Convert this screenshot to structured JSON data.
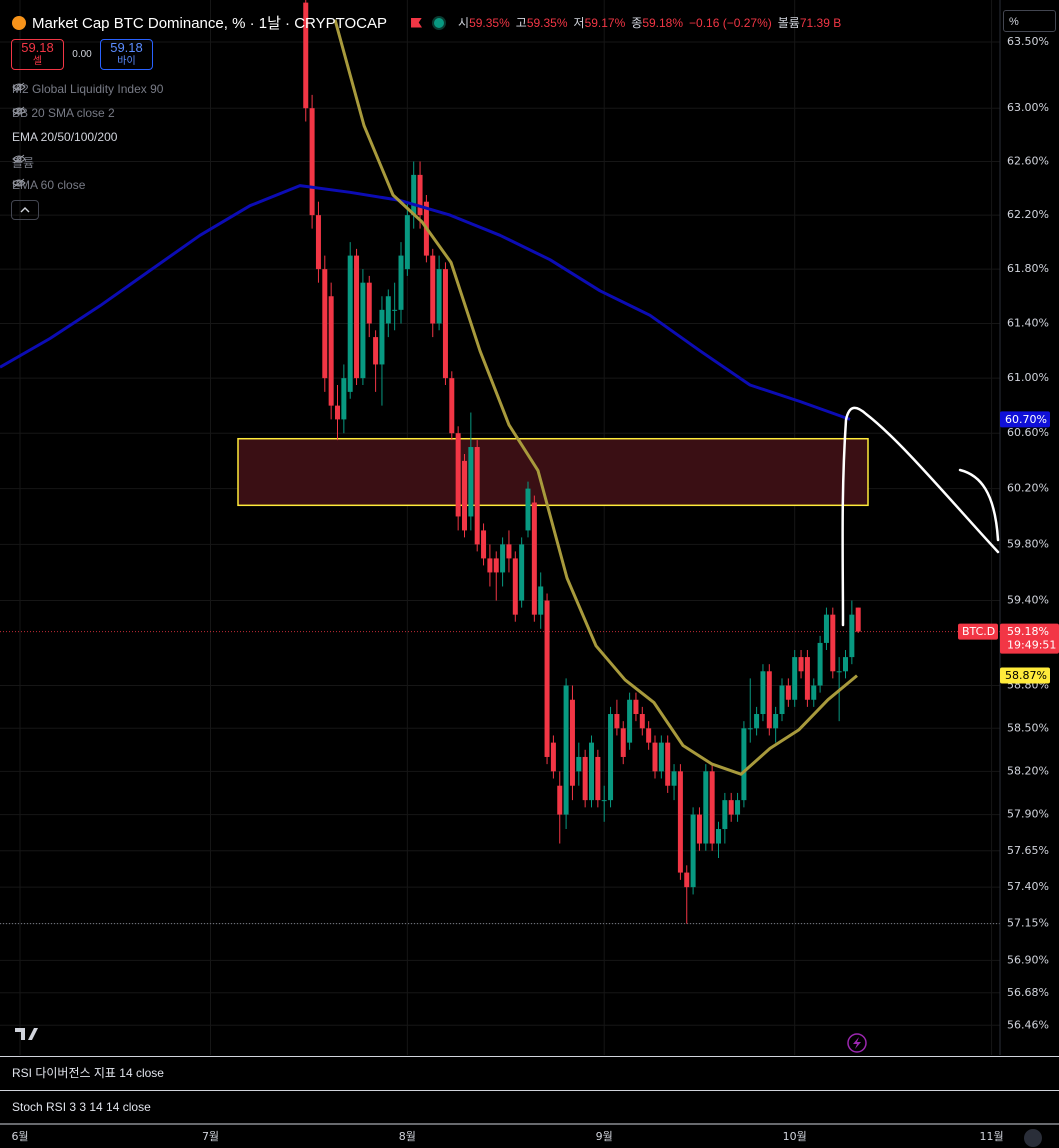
{
  "header": {
    "symbol": "Market Cap BTC Dominance, % · 1날 · CRYPTOCAP",
    "ohlc": [
      {
        "label": "시",
        "value": "59.35%"
      },
      {
        "label": "고",
        "value": "59.35%"
      },
      {
        "label": "저",
        "value": "59.17%"
      },
      {
        "label": "종",
        "value": "59.18%"
      }
    ],
    "change": "−0.16 (−0.27%)",
    "volume_label": "볼륨",
    "volume": "71.39 B"
  },
  "trade": {
    "sell_price": "59.18",
    "sell": "셀",
    "spread": "0.00",
    "buy_price": "59.18",
    "buy": "바이"
  },
  "indicators": [
    "M2 Global Liquidity Index 90",
    "BB 20 SMA close 2",
    "EMA 20/50/100/200",
    "볼륨",
    "EMA 60 close"
  ],
  "panes": [
    "RSI 다이버전스 지표 14 close",
    "Stoch RSI 3 3 14 14 close"
  ],
  "scale_unit": "%",
  "chart_data": {
    "type": "candlestick",
    "categories": [
      "6월",
      "7월",
      "8월",
      "9월",
      "10월",
      "11월"
    ],
    "up_color": "#089981",
    "down_color": "#f23645",
    "log": true,
    "grid": true,
    "ylim": [
      56.26,
      63.82
    ],
    "yticks": [
      {
        "value": 63.5,
        "label": "63.50%"
      },
      {
        "value": 63.0,
        "label": "63.00%"
      },
      {
        "value": 62.6,
        "label": "62.60%"
      },
      {
        "value": 62.2,
        "label": "62.20%"
      },
      {
        "value": 61.8,
        "label": "61.80%"
      },
      {
        "value": 61.4,
        "label": "61.40%"
      },
      {
        "value": 61.0,
        "label": "61.00%"
      },
      {
        "value": 60.6,
        "label": "60.60%"
      },
      {
        "value": 60.2,
        "label": "60.20%"
      },
      {
        "value": 59.8,
        "label": "59.80%"
      },
      {
        "value": 59.4,
        "label": "59.40%"
      },
      {
        "value": 58.8,
        "label": "58.80%"
      },
      {
        "value": 58.5,
        "label": "58.50%"
      },
      {
        "value": 58.2,
        "label": "58.20%"
      },
      {
        "value": 57.9,
        "label": "57.90%"
      },
      {
        "value": 57.65,
        "label": "57.65%"
      },
      {
        "value": 57.4,
        "label": "57.40%"
      },
      {
        "value": 57.15,
        "label": "57.15%"
      },
      {
        "value": 56.9,
        "label": "56.90%"
      },
      {
        "value": 56.68,
        "label": "56.68%"
      },
      {
        "value": 56.46,
        "label": "56.46%"
      }
    ],
    "candles": [
      [
        63.8,
        63.85,
        62.9,
        63.0
      ],
      [
        63.0,
        63.1,
        62.1,
        62.2
      ],
      [
        62.2,
        62.3,
        61.7,
        61.8
      ],
      [
        61.8,
        61.9,
        60.9,
        61.0
      ],
      [
        61.6,
        61.7,
        60.7,
        60.8
      ],
      [
        60.8,
        60.95,
        60.55,
        60.7
      ],
      [
        60.7,
        61.1,
        60.6,
        61.0
      ],
      [
        60.9,
        62.0,
        60.85,
        61.9
      ],
      [
        61.9,
        61.95,
        60.95,
        61.0
      ],
      [
        61.0,
        61.8,
        60.95,
        61.7
      ],
      [
        61.7,
        61.75,
        61.3,
        61.4
      ],
      [
        61.3,
        61.35,
        60.9,
        61.1
      ],
      [
        61.1,
        61.6,
        60.8,
        61.5
      ],
      [
        61.4,
        61.65,
        61.3,
        61.6
      ],
      [
        61.5,
        61.7,
        61.35,
        61.5
      ],
      [
        61.5,
        62.0,
        61.4,
        61.9
      ],
      [
        61.8,
        62.3,
        61.75,
        62.2
      ],
      [
        62.2,
        62.6,
        62.1,
        62.5
      ],
      [
        62.5,
        62.6,
        62.1,
        62.2
      ],
      [
        62.3,
        62.35,
        61.85,
        61.9
      ],
      [
        61.9,
        61.95,
        61.3,
        61.4
      ],
      [
        61.4,
        61.9,
        61.35,
        61.8
      ],
      [
        61.8,
        61.85,
        60.95,
        61.0
      ],
      [
        61.0,
        61.05,
        60.55,
        60.6
      ],
      [
        60.6,
        60.65,
        59.9,
        60.0
      ],
      [
        60.4,
        60.45,
        59.85,
        59.9
      ],
      [
        60.0,
        60.75,
        59.9,
        60.5
      ],
      [
        60.5,
        60.55,
        59.75,
        59.8
      ],
      [
        59.9,
        59.95,
        59.65,
        59.7
      ],
      [
        59.7,
        59.8,
        59.5,
        59.6
      ],
      [
        59.7,
        59.75,
        59.4,
        59.6
      ],
      [
        59.6,
        59.85,
        59.5,
        59.8
      ],
      [
        59.8,
        59.9,
        59.6,
        59.7
      ],
      [
        59.7,
        59.75,
        59.25,
        59.3
      ],
      [
        59.4,
        59.85,
        59.35,
        59.8
      ],
      [
        59.9,
        60.25,
        59.85,
        60.2
      ],
      [
        60.1,
        60.15,
        59.25,
        59.3
      ],
      [
        59.3,
        59.6,
        59.2,
        59.5
      ],
      [
        59.4,
        59.45,
        58.25,
        58.3
      ],
      [
        58.4,
        58.45,
        58.15,
        58.2
      ],
      [
        58.1,
        58.2,
        57.7,
        57.9
      ],
      [
        57.9,
        58.85,
        57.8,
        58.8
      ],
      [
        58.7,
        58.8,
        58.0,
        58.1
      ],
      [
        58.2,
        58.4,
        58.1,
        58.3
      ],
      [
        58.3,
        58.35,
        57.95,
        58.0
      ],
      [
        58.0,
        58.45,
        57.95,
        58.4
      ],
      [
        58.3,
        58.35,
        57.95,
        58.0
      ],
      [
        58.0,
        58.1,
        57.85,
        58.0
      ],
      [
        58.0,
        58.65,
        57.95,
        58.6
      ],
      [
        58.6,
        58.7,
        58.45,
        58.5
      ],
      [
        58.5,
        58.55,
        58.25,
        58.3
      ],
      [
        58.4,
        58.75,
        58.35,
        58.7
      ],
      [
        58.7,
        58.75,
        58.55,
        58.6
      ],
      [
        58.6,
        58.65,
        58.45,
        58.5
      ],
      [
        58.5,
        58.55,
        58.35,
        58.4
      ],
      [
        58.4,
        58.45,
        58.15,
        58.2
      ],
      [
        58.2,
        58.45,
        58.15,
        58.4
      ],
      [
        58.4,
        58.45,
        58.05,
        58.1
      ],
      [
        58.1,
        58.25,
        58.0,
        58.2
      ],
      [
        58.2,
        58.25,
        57.45,
        57.5
      ],
      [
        57.5,
        57.55,
        57.15,
        57.4
      ],
      [
        57.4,
        57.95,
        57.35,
        57.9
      ],
      [
        57.9,
        57.95,
        57.65,
        57.7
      ],
      [
        57.7,
        58.25,
        57.65,
        58.2
      ],
      [
        58.2,
        58.25,
        57.65,
        57.7
      ],
      [
        57.7,
        57.85,
        57.6,
        57.8
      ],
      [
        57.8,
        58.05,
        57.7,
        58.0
      ],
      [
        58.0,
        58.05,
        57.85,
        57.9
      ],
      [
        57.9,
        58.05,
        57.85,
        58.0
      ],
      [
        58.0,
        58.55,
        57.95,
        58.5
      ],
      [
        58.5,
        58.85,
        58.4,
        58.5
      ],
      [
        58.5,
        58.65,
        58.45,
        58.6
      ],
      [
        58.6,
        58.95,
        58.55,
        58.9
      ],
      [
        58.9,
        58.95,
        58.45,
        58.5
      ],
      [
        58.5,
        58.65,
        58.4,
        58.6
      ],
      [
        58.6,
        58.85,
        58.55,
        58.8
      ],
      [
        58.8,
        58.85,
        58.65,
        58.7
      ],
      [
        58.7,
        59.05,
        58.65,
        59.0
      ],
      [
        59.0,
        59.05,
        58.85,
        58.9
      ],
      [
        59.0,
        59.05,
        58.65,
        58.7
      ],
      [
        58.7,
        58.85,
        58.65,
        58.8
      ],
      [
        58.8,
        59.15,
        58.75,
        59.1
      ],
      [
        59.1,
        59.35,
        59.05,
        59.3
      ],
      [
        59.3,
        59.35,
        58.85,
        58.9
      ],
      [
        58.9,
        59.0,
        58.55,
        58.9
      ],
      [
        58.9,
        59.05,
        58.85,
        59.0
      ],
      [
        59.0,
        59.4,
        58.95,
        59.3
      ],
      [
        59.35,
        59.35,
        59.17,
        59.18
      ]
    ],
    "lines": [
      {
        "color": "#0c0cb4",
        "values": [
          61.08,
          61.29,
          61.53,
          61.79,
          62.05,
          62.27,
          62.42,
          62.37,
          62.31,
          62.2,
          62.05,
          61.87,
          61.64,
          61.46,
          61.2,
          60.95,
          60.83,
          60.7
        ],
        "value_label": "60.70%",
        "label_bg": "#1010d8",
        "label_fg": "#ffffff"
      },
      {
        "color": "#a89a3c",
        "values": [
          63.67,
          62.87,
          62.35,
          62.15,
          61.85,
          61.2,
          60.66,
          60.33,
          59.56,
          59.08,
          58.84,
          58.68,
          58.38,
          58.25,
          58.18,
          58.36,
          58.49,
          58.7,
          58.87
        ],
        "value_label": "58.87%",
        "label_bg": "#ffeb3b",
        "label_fg": "#000000"
      }
    ],
    "zone": {
      "top": 60.56,
      "bottom": 60.08,
      "color": "#ffeb3b",
      "fill": "#3a0f14"
    },
    "last_price": 59.18,
    "last_label": "59.18%",
    "symbol_tag": "BTC.D",
    "countdown": "19:49:51",
    "low_line": 57.15
  }
}
